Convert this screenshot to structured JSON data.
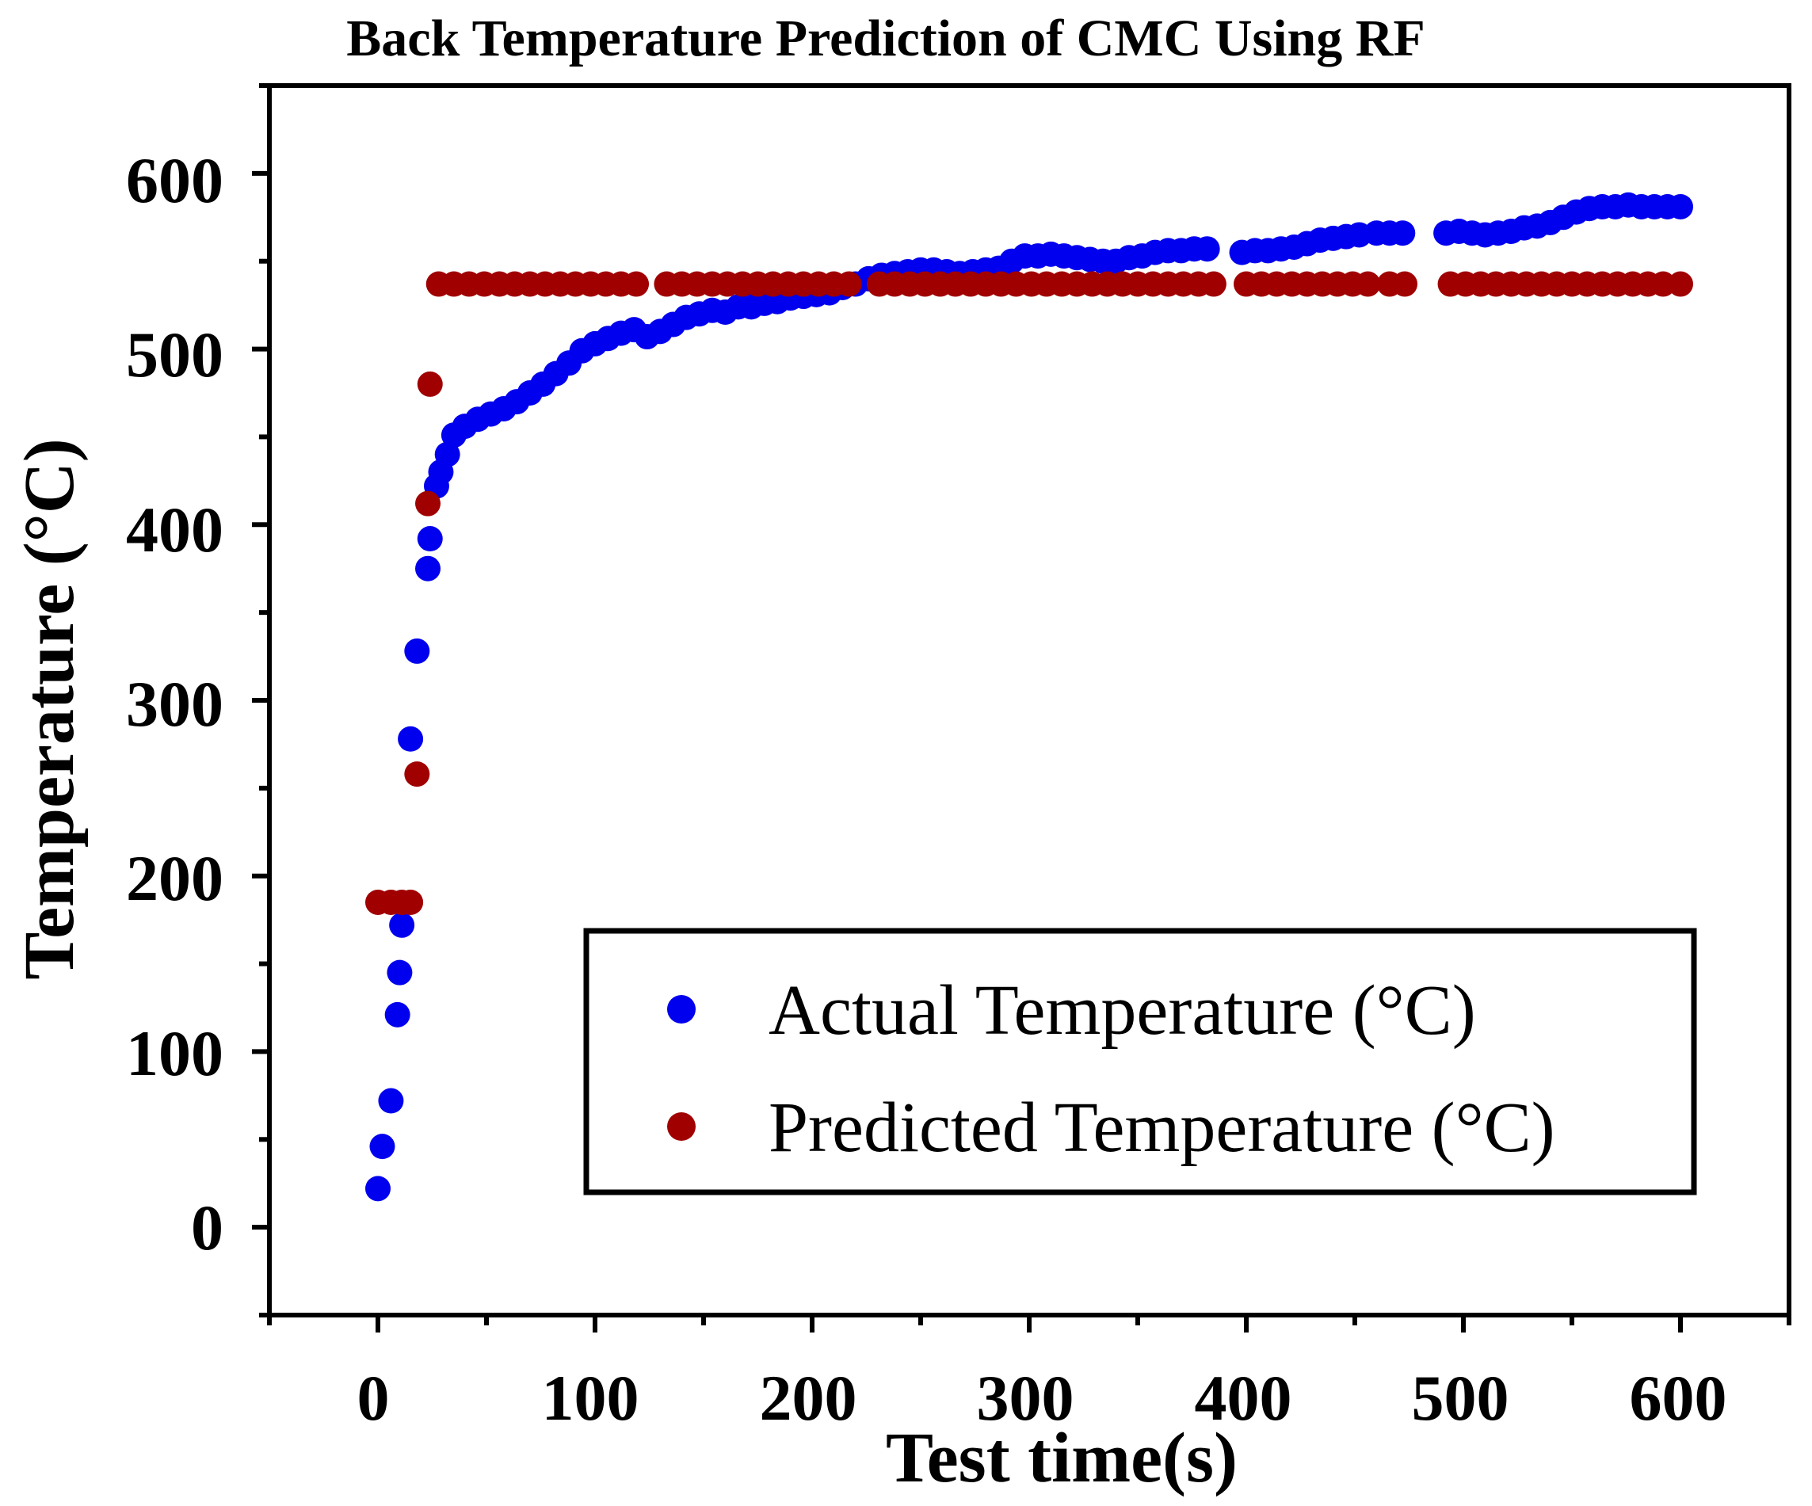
{
  "chart_data": {
    "type": "scatter",
    "title": "Back Temperature Prediction of CMC Using RF",
    "xlabel": "Test time(s)",
    "ylabel": "Temperature (°C)",
    "xlim": [
      -50,
      650
    ],
    "ylim": [
      -50,
      650
    ],
    "x_ticks": [
      0,
      100,
      200,
      300,
      400,
      500,
      600
    ],
    "y_ticks": [
      0,
      100,
      200,
      300,
      400,
      500,
      600
    ],
    "x_tick_labels": [
      "0",
      "100",
      "200",
      "300",
      "400",
      "500",
      "600"
    ],
    "y_tick_labels": [
      "0",
      "100",
      "200",
      "300",
      "400",
      "500",
      "600"
    ],
    "legend_position": "bottom-right",
    "series": [
      {
        "name": "Actual Temperature (°C)",
        "color": "#0000ee",
        "x": [
          0,
          2,
          6,
          9,
          10,
          11,
          15,
          18,
          23,
          24,
          27,
          29,
          32,
          35,
          40,
          46,
          52,
          58,
          64,
          70,
          76,
          82,
          88,
          94,
          100,
          106,
          112,
          118,
          124,
          130,
          136,
          142,
          148,
          154,
          160,
          166,
          172,
          178,
          184,
          190,
          196,
          202,
          208,
          214,
          220,
          226,
          232,
          238,
          244,
          250,
          256,
          262,
          268,
          274,
          280,
          286,
          292,
          298,
          304,
          310,
          316,
          322,
          328,
          334,
          340,
          346,
          352,
          358,
          364,
          370,
          376,
          382,
          398,
          404,
          410,
          416,
          422,
          428,
          434,
          440,
          446,
          452,
          460,
          466,
          472,
          492,
          498,
          504,
          510,
          516,
          522,
          528,
          534,
          540,
          546,
          552,
          558,
          564,
          570,
          576,
          582,
          588,
          594,
          600
        ],
        "y": [
          22,
          46,
          72,
          121,
          145,
          172,
          278,
          328,
          375,
          392,
          422,
          430,
          440,
          451,
          456,
          460,
          463,
          466,
          470,
          475,
          480,
          486,
          492,
          499,
          503,
          506,
          509,
          511,
          507,
          510,
          514,
          518,
          520,
          522,
          521,
          524,
          524,
          526,
          527,
          529,
          530,
          531,
          532,
          535,
          537,
          540,
          542,
          543,
          544,
          545,
          545,
          544,
          543,
          544,
          545,
          546,
          550,
          553,
          553,
          554,
          553,
          552,
          551,
          550,
          550,
          552,
          553,
          555,
          556,
          556,
          557,
          557,
          555,
          556,
          556,
          557,
          558,
          560,
          562,
          563,
          564,
          565,
          566,
          566,
          566,
          566,
          567,
          566,
          565,
          566,
          567,
          569,
          570,
          572,
          575,
          578,
          580,
          581,
          581,
          582,
          581,
          581,
          581,
          581
        ]
      },
      {
        "name": "Predicted Temperature (°C)",
        "color": "#a00000",
        "x": [
          0,
          6,
          11,
          15,
          18,
          23,
          24,
          28,
          35,
          42,
          49,
          56,
          63,
          70,
          77,
          84,
          91,
          98,
          105,
          112,
          119,
          133,
          140,
          147,
          154,
          161,
          168,
          175,
          182,
          189,
          196,
          203,
          210,
          217,
          231,
          238,
          245,
          252,
          259,
          266,
          273,
          280,
          287,
          294,
          301,
          308,
          315,
          322,
          329,
          336,
          343,
          350,
          357,
          364,
          371,
          378,
          385,
          400,
          407,
          414,
          421,
          428,
          435,
          442,
          449,
          456,
          466,
          473,
          494,
          501,
          508,
          515,
          522,
          529,
          536,
          543,
          550,
          557,
          564,
          571,
          578,
          585,
          592,
          600
        ],
        "y": [
          185,
          185,
          185,
          185,
          258,
          412,
          480,
          537,
          537,
          537,
          537,
          537,
          537,
          537,
          537,
          537,
          537,
          537,
          537,
          537,
          537,
          537,
          537,
          537,
          537,
          537,
          537,
          537,
          537,
          537,
          537,
          537,
          537,
          537,
          537,
          537,
          537,
          537,
          537,
          537,
          537,
          537,
          537,
          537,
          537,
          537,
          537,
          537,
          537,
          537,
          537,
          537,
          537,
          537,
          537,
          537,
          537,
          537,
          537,
          537,
          537,
          537,
          537,
          537,
          537,
          537,
          537,
          537,
          537,
          537,
          537,
          537,
          537,
          537,
          537,
          537,
          537,
          537,
          537,
          537,
          537,
          537,
          537,
          537
        ]
      }
    ]
  }
}
